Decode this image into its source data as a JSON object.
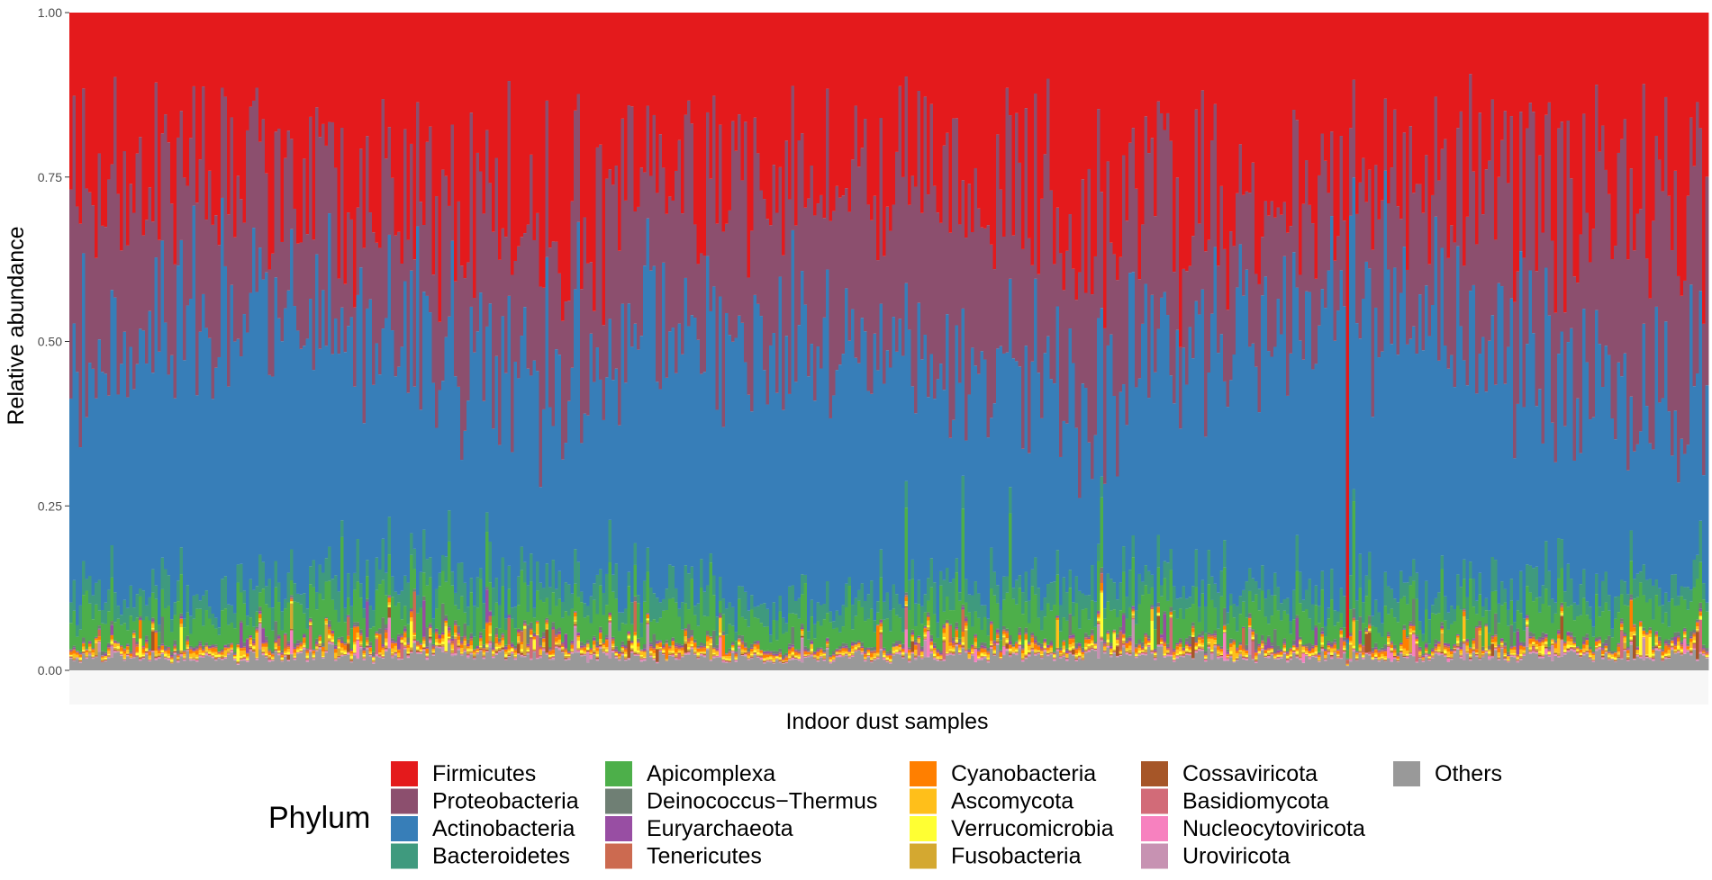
{
  "chart_data": {
    "type": "bar",
    "stacked": true,
    "n_samples": 520,
    "xlabel": "Indoor dust samples",
    "ylabel": "Relative abundance",
    "ylim": [
      0,
      1
    ],
    "y_ticks": [
      {
        "value": 0.0,
        "label": "0.00"
      },
      {
        "value": 0.25,
        "label": "0.25"
      },
      {
        "value": 0.5,
        "label": "0.50"
      },
      {
        "value": 0.75,
        "label": "0.75"
      },
      {
        "value": 1.0,
        "label": "1.00"
      }
    ],
    "legend_title": "Phylum",
    "legend_position": "bottom",
    "series": [
      {
        "name": "Firmicutes",
        "color": "#E41A1C",
        "mean_share": 0.27
      },
      {
        "name": "Proteobacteria",
        "color": "#8C4F6E",
        "mean_share": 0.24
      },
      {
        "name": "Actinobacteria",
        "color": "#377EB8",
        "mean_share": 0.36
      },
      {
        "name": "Bacteroidetes",
        "color": "#3F9A7E",
        "mean_share": 0.03
      },
      {
        "name": "Apicomplexa",
        "color": "#4DAF4A",
        "mean_share": 0.035
      },
      {
        "name": "Deinococcus−Thermus",
        "color": "#6F7F74",
        "mean_share": 0.004
      },
      {
        "name": "Euryarchaeota",
        "color": "#984EA3",
        "mean_share": 0.002
      },
      {
        "name": "Tenericutes",
        "color": "#CC6A50",
        "mean_share": 0.002
      },
      {
        "name": "Cyanobacteria",
        "color": "#FF7F00",
        "mean_share": 0.004
      },
      {
        "name": "Ascomycota",
        "color": "#FFBF1A",
        "mean_share": 0.004
      },
      {
        "name": "Verrucomicrobia",
        "color": "#FFFF33",
        "mean_share": 0.002
      },
      {
        "name": "Fusobacteria",
        "color": "#D4A830",
        "mean_share": 0.002
      },
      {
        "name": "Cossaviricota",
        "color": "#A65628",
        "mean_share": 0.001
      },
      {
        "name": "Basidiomycota",
        "color": "#D26B78",
        "mean_share": 0.001
      },
      {
        "name": "Nucleocytoviricota",
        "color": "#F781BF",
        "mean_share": 0.001
      },
      {
        "name": "Uroviricota",
        "color": "#C792B2",
        "mean_share": 0.001
      },
      {
        "name": "Others",
        "color": "#999999",
        "mean_share": 0.018
      }
    ],
    "legend_columns": [
      [
        "Firmicutes",
        "Proteobacteria",
        "Actinobacteria",
        "Bacteroidetes"
      ],
      [
        "Apicomplexa",
        "Deinococcus−Thermus",
        "Euryarchaeota",
        "Tenericutes"
      ],
      [
        "Cyanobacteria",
        "Ascomycota",
        "Verrucomicrobia",
        "Fusobacteria"
      ],
      [
        "Cossaviricota",
        "Basidiomycota",
        "Nucleocytoviricota",
        "Uroviricota"
      ],
      [
        "Others"
      ]
    ]
  }
}
